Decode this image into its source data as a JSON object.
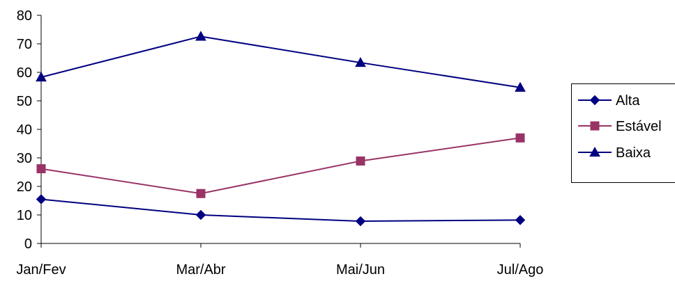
{
  "chart_data": {
    "type": "line",
    "categories": [
      "Jan/Fev",
      "Mar/Abr",
      "Mai/Jun",
      "Jul/Ago"
    ],
    "series": [
      {
        "name": "Alta",
        "values": [
          15.5,
          10,
          7.8,
          8.2
        ],
        "color": "#000080",
        "marker": "diamond"
      },
      {
        "name": "Estável",
        "values": [
          26.2,
          17.5,
          28.9,
          37
        ],
        "color": "#993366",
        "marker": "square"
      },
      {
        "name": "Baixa",
        "values": [
          58.3,
          72.6,
          63.4,
          54.7
        ],
        "color": "#000080",
        "marker": "triangle"
      }
    ],
    "ylim": [
      0,
      80
    ],
    "yticks": [
      "0",
      "10",
      "20",
      "30",
      "40",
      "50",
      "60",
      "70",
      "80"
    ],
    "title": "",
    "xlabel": "",
    "ylabel": "",
    "grid": false,
    "legend_position": "right"
  }
}
